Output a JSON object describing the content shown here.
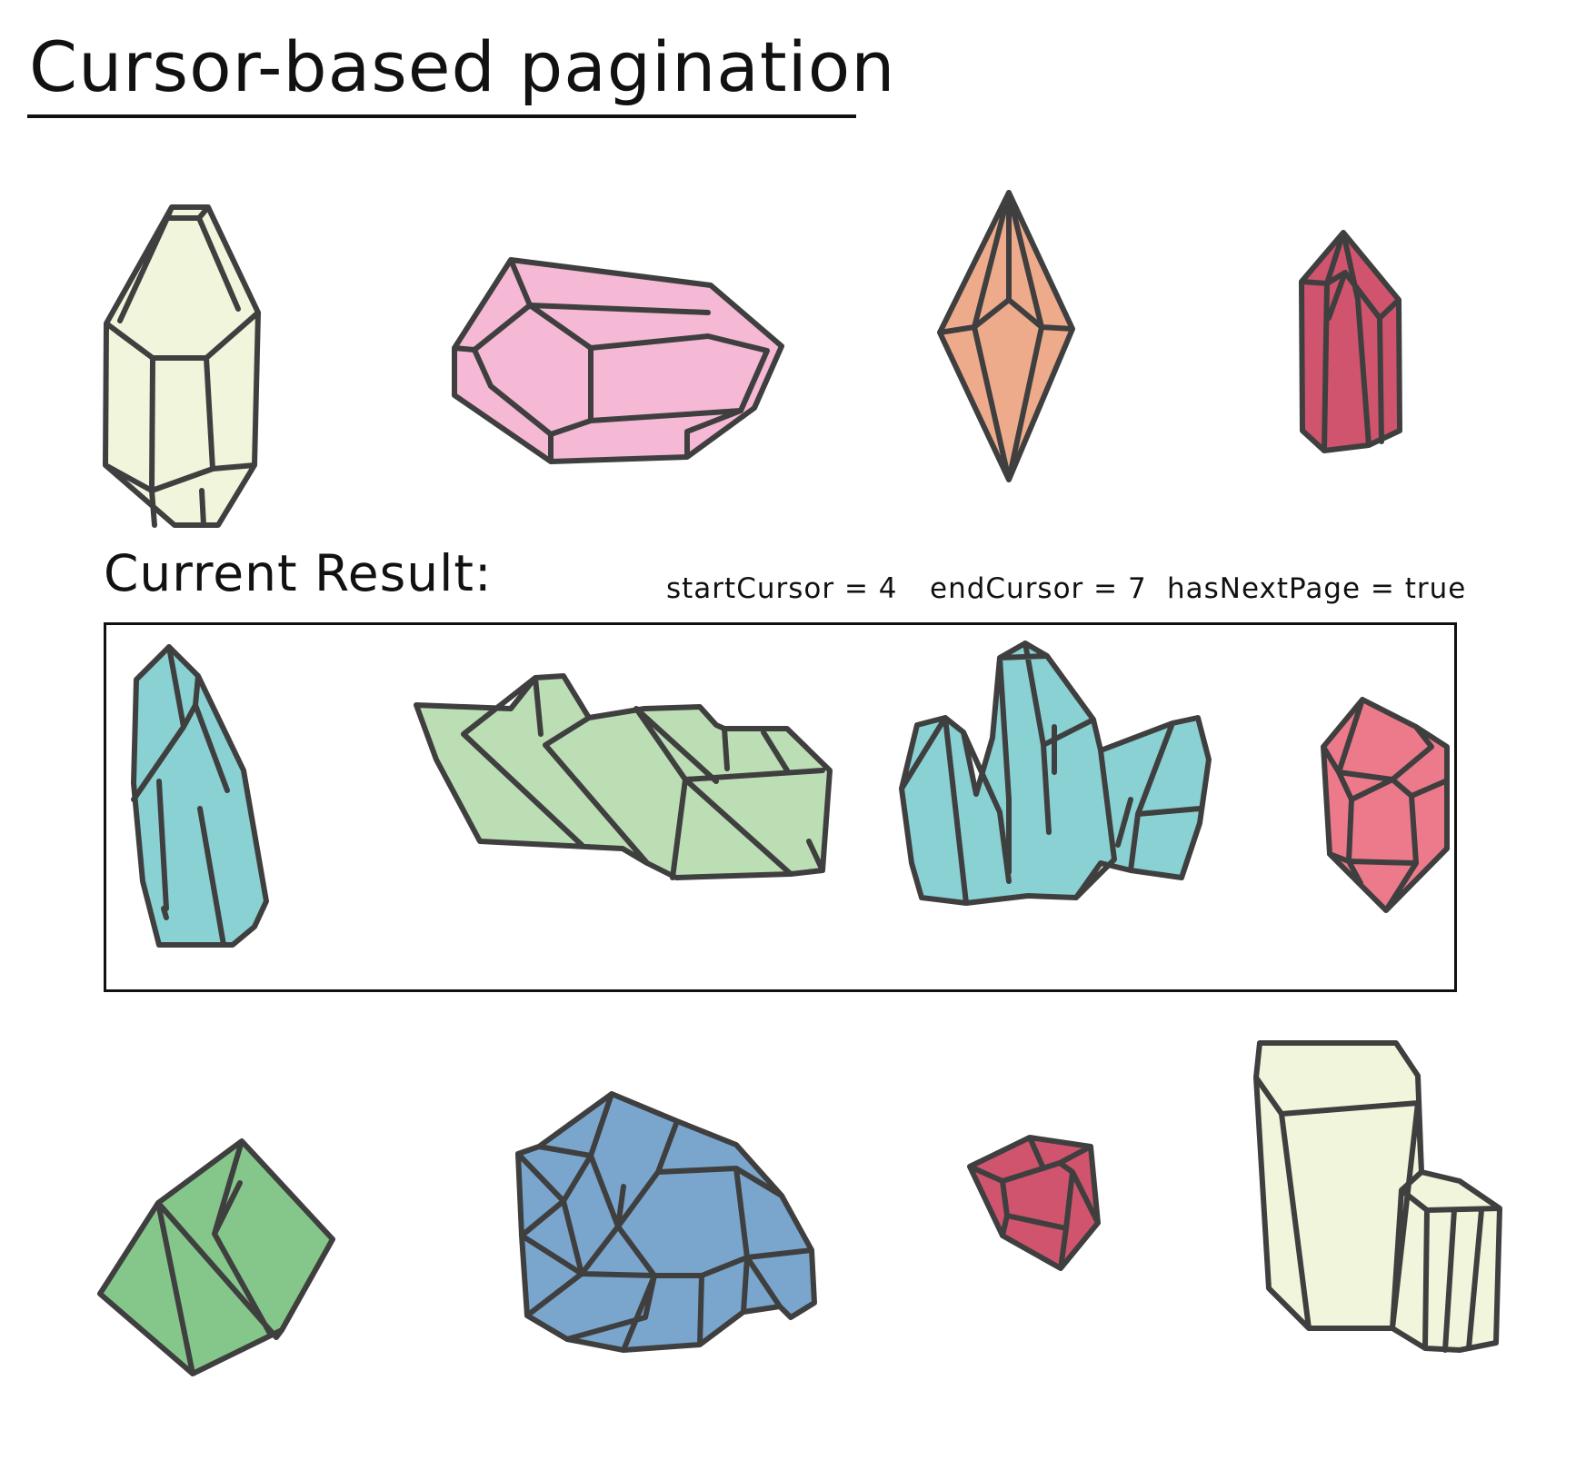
{
  "title": "Cursor-based pagination",
  "result": {
    "label": "Current Result:",
    "start_cursor": "startCursor = 4",
    "end_cursor": "endCursor = 7",
    "has_next_page": "hasNextPage = true"
  },
  "colors": {
    "cream": "#f1f5dc",
    "pink": "#f5b9d5",
    "orange": "#eeab8c",
    "crimson": "#d0546e",
    "teal": "#8ad1d3",
    "sage": "#bcdeb5",
    "rose": "#ec7a8b",
    "green": "#85c78a",
    "blue": "#7aa6cd",
    "outline": "#3f3f3f"
  },
  "rows": [
    {
      "name": "previous-items",
      "gems": [
        "cream-prism",
        "pink-crystal",
        "orange-bipyramid",
        "crimson-shard"
      ]
    },
    {
      "name": "current-result-items",
      "gems": [
        "teal-shard",
        "sage-cluster",
        "teal-cluster",
        "rose-crystal"
      ]
    },
    {
      "name": "next-items",
      "gems": [
        "green-cube",
        "blue-geode",
        "crimson-nugget",
        "cream-twin-prism"
      ]
    }
  ]
}
